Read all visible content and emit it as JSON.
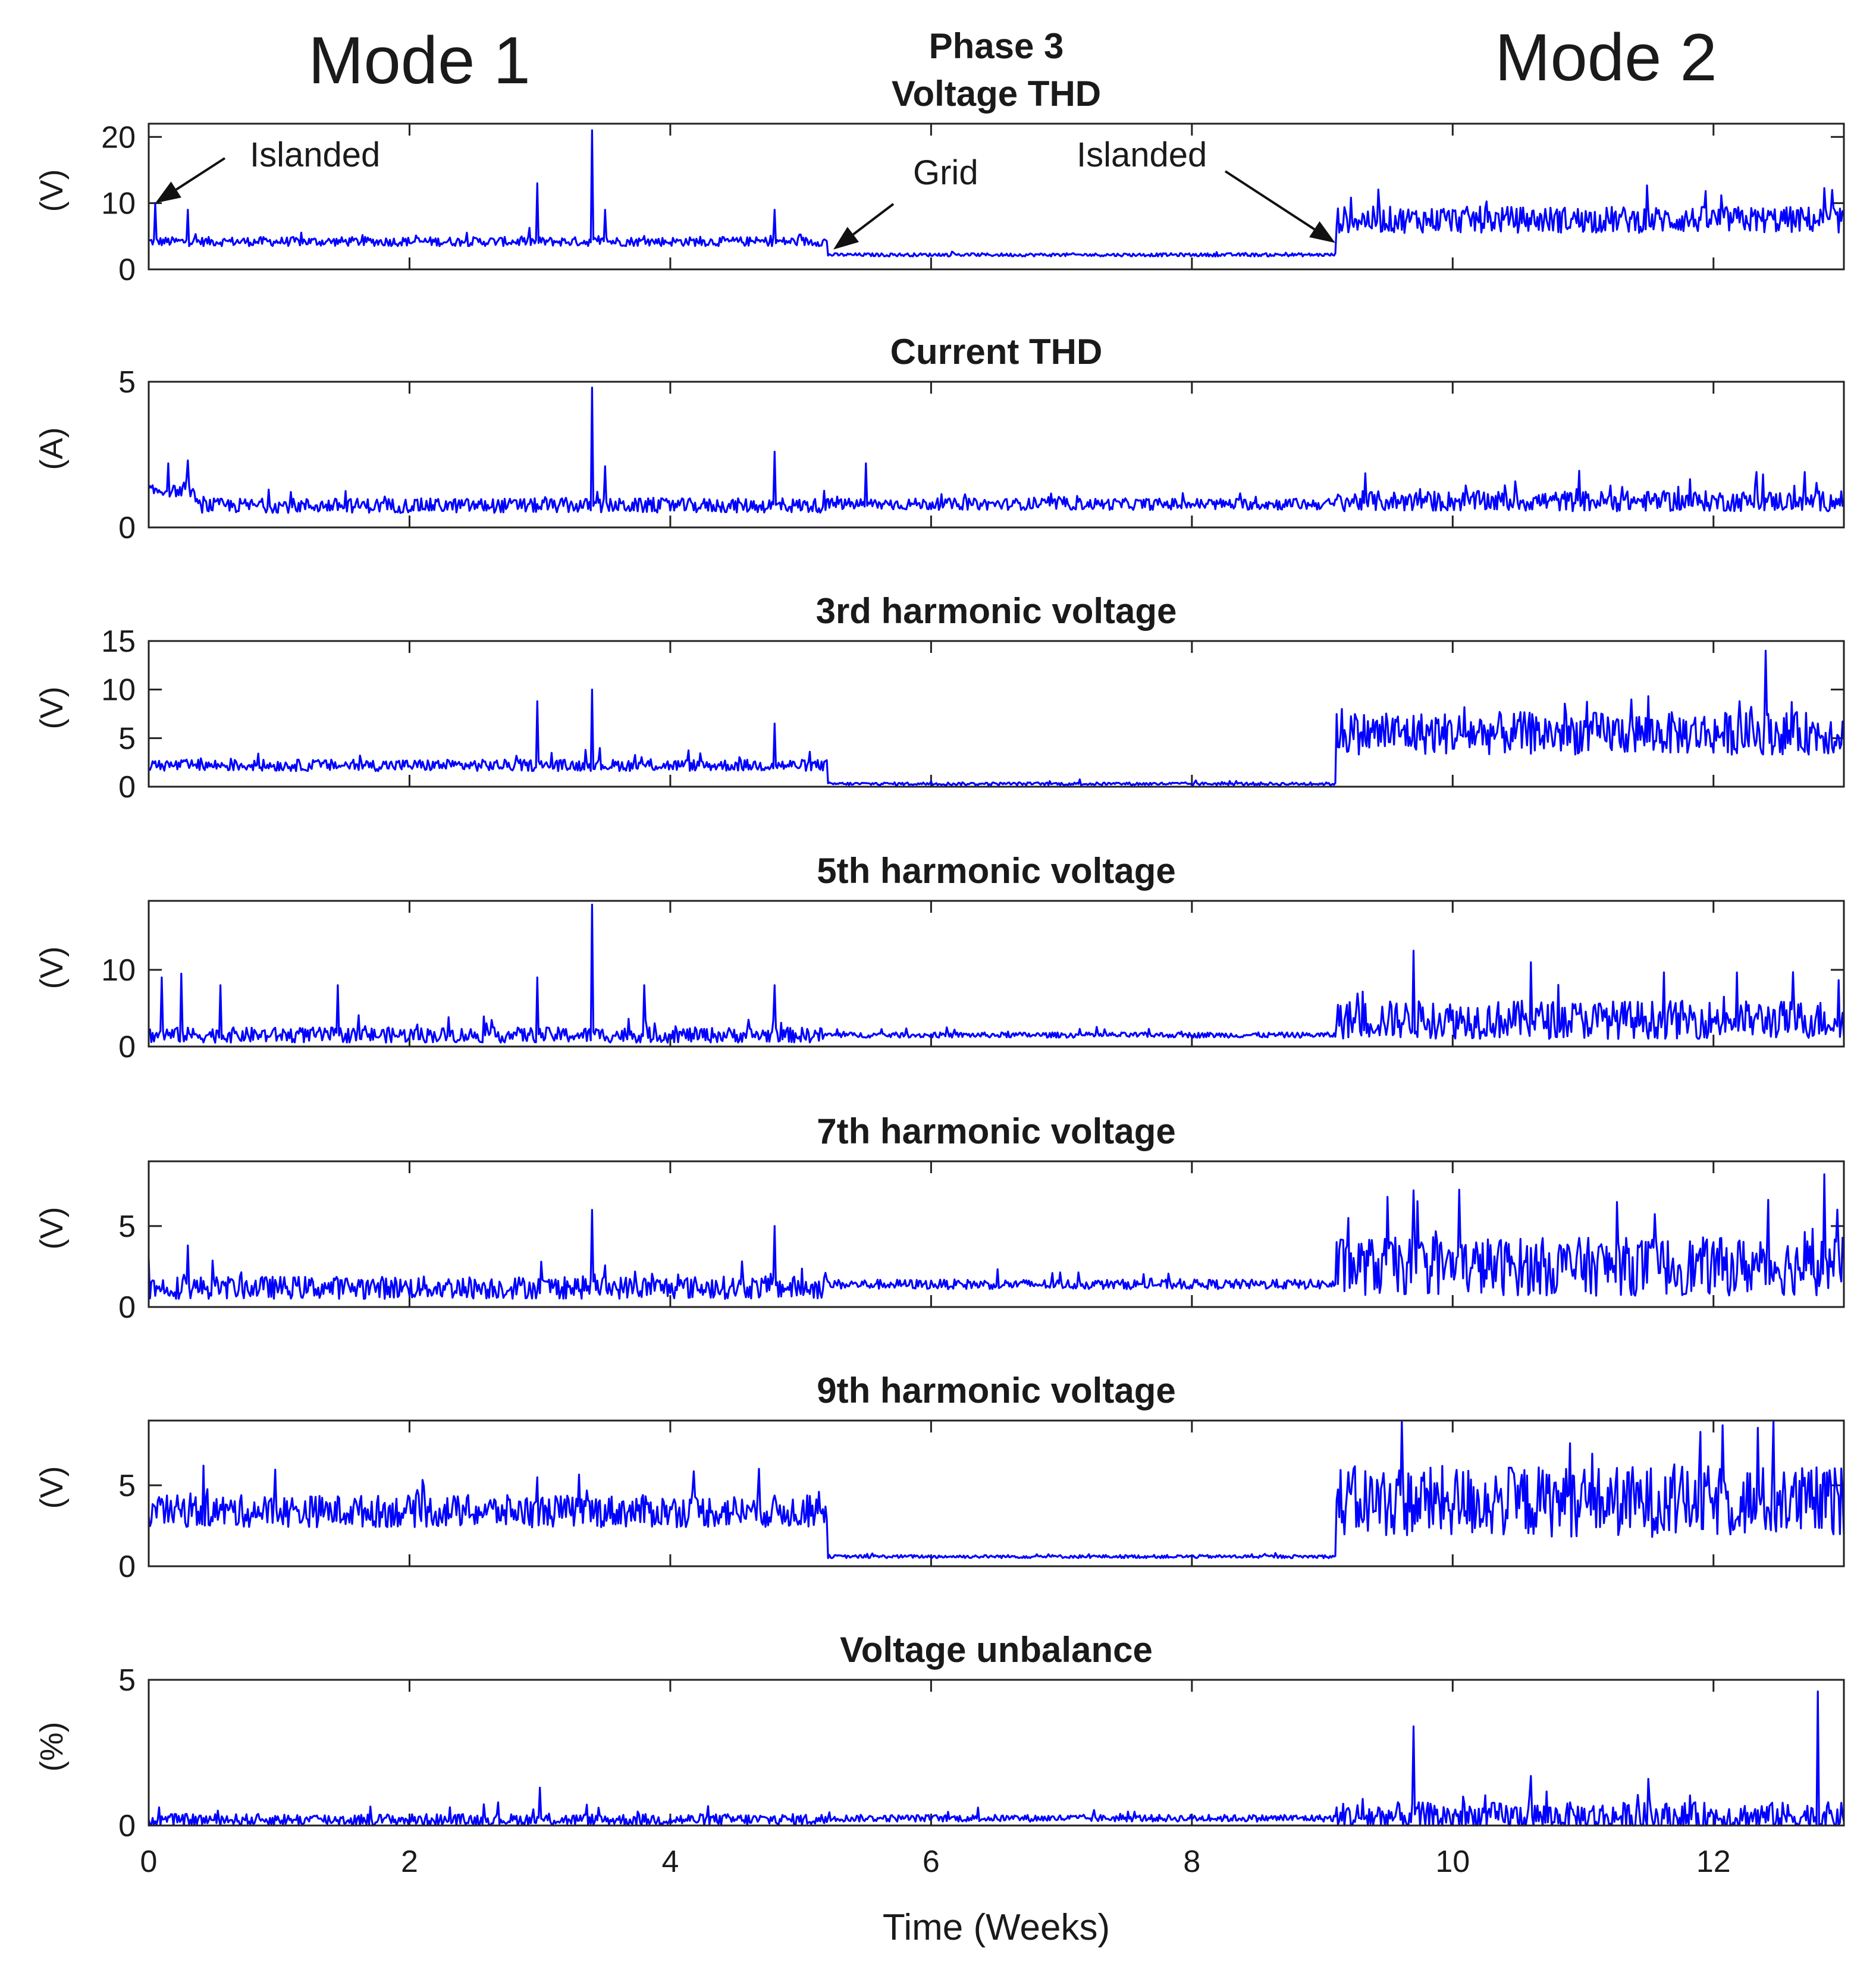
{
  "figure": {
    "mode_left": "Mode 1",
    "mode_right": "Mode 2",
    "xlabel": "Time (Weeks)",
    "line_color": "#0000ff",
    "annotations": [
      {
        "label": "Islanded",
        "panel": 0,
        "target_x": 0.05,
        "target_y": 10
      },
      {
        "label": "Grid",
        "panel": 0,
        "target_x": 5.25,
        "target_y": 3
      },
      {
        "label": "Islanded",
        "panel": 0,
        "target_x": 9.1,
        "target_y": 4
      }
    ]
  },
  "chart_data": [
    {
      "type": "line",
      "title": "Phase 3",
      "subtitle": "Voltage THD",
      "ylabel": "(V)",
      "xlim": [
        0,
        13
      ],
      "ylim": [
        0,
        22
      ],
      "yticks": [
        0,
        10,
        20
      ],
      "xticks": [
        0,
        2,
        4,
        6,
        8,
        10,
        12
      ],
      "series": [
        {
          "name": "Voltage THD",
          "segments": [
            {
              "x0": 0,
              "x1": 5.2,
              "base": 4.2,
              "noise": 0.7
            },
            {
              "x0": 5.2,
              "x1": 9.1,
              "base": 2.2,
              "noise": 0.25
            },
            {
              "x0": 9.1,
              "x1": 13,
              "base": 7.5,
              "noise": 2.0
            }
          ],
          "spikes": [
            [
              0.05,
              10
            ],
            [
              0.3,
              9
            ],
            [
              2.98,
              13
            ],
            [
              3.4,
              21
            ],
            [
              3.5,
              9
            ],
            [
              4.8,
              9
            ]
          ]
        }
      ]
    },
    {
      "type": "line",
      "title": "Current THD",
      "ylabel": "(A)",
      "xlim": [
        0,
        13
      ],
      "ylim": [
        0,
        5
      ],
      "yticks": [
        0,
        5
      ],
      "xticks": [
        0,
        2,
        4,
        6,
        8,
        10,
        12
      ],
      "series": [
        {
          "name": "Current THD",
          "segments": [
            {
              "x0": 0,
              "x1": 0.35,
              "base": 1.25,
              "noise": 0.2
            },
            {
              "x0": 0.35,
              "x1": 5.2,
              "base": 0.75,
              "noise": 0.25
            },
            {
              "x0": 5.2,
              "x1": 9.1,
              "base": 0.8,
              "noise": 0.2
            },
            {
              "x0": 9.1,
              "x1": 13,
              "base": 0.9,
              "noise": 0.35
            }
          ],
          "spikes": [
            [
              0.15,
              2.2
            ],
            [
              0.3,
              2.3
            ],
            [
              3.4,
              4.8
            ],
            [
              3.5,
              2.1
            ],
            [
              4.8,
              2.6
            ],
            [
              5.5,
              2.2
            ],
            [
              12.7,
              1.9
            ]
          ]
        }
      ]
    },
    {
      "type": "line",
      "title": "3rd harmonic voltage",
      "ylabel": "(V)",
      "xlim": [
        0,
        13
      ],
      "ylim": [
        0,
        15
      ],
      "yticks": [
        0,
        5,
        10,
        15
      ],
      "xticks": [
        0,
        2,
        4,
        6,
        8,
        10,
        12
      ],
      "series": [
        {
          "name": "3rd harmonic",
          "segments": [
            {
              "x0": 0,
              "x1": 5.2,
              "base": 2.2,
              "noise": 0.6
            },
            {
              "x0": 5.2,
              "x1": 9.1,
              "base": 0.3,
              "noise": 0.15
            },
            {
              "x0": 9.1,
              "x1": 13,
              "base": 5.5,
              "noise": 2.2
            }
          ],
          "spikes": [
            [
              2.98,
              8.8
            ],
            [
              3.4,
              10
            ],
            [
              4.8,
              6.5
            ],
            [
              12.4,
              14
            ],
            [
              9.15,
              8
            ]
          ]
        }
      ]
    },
    {
      "type": "line",
      "title": "5th harmonic voltage",
      "ylabel": "(V)",
      "xlim": [
        0,
        13
      ],
      "ylim": [
        0,
        19
      ],
      "yticks": [
        0,
        10
      ],
      "xticks": [
        0,
        2,
        4,
        6,
        8,
        10,
        12
      ],
      "series": [
        {
          "name": "5th harmonic",
          "segments": [
            {
              "x0": 0,
              "x1": 5.2,
              "base": 1.5,
              "noise": 1.0
            },
            {
              "x0": 5.2,
              "x1": 9.1,
              "base": 1.5,
              "noise": 0.35
            },
            {
              "x0": 9.1,
              "x1": 13,
              "base": 3.5,
              "noise": 2.5
            }
          ],
          "spikes": [
            [
              0.1,
              9
            ],
            [
              0.25,
              9.5
            ],
            [
              0.55,
              8
            ],
            [
              1.45,
              8
            ],
            [
              2.98,
              9
            ],
            [
              3.4,
              18.5
            ],
            [
              3.8,
              8
            ],
            [
              4.8,
              8
            ],
            [
              9.7,
              12.5
            ],
            [
              10.6,
              11
            ]
          ]
        }
      ]
    },
    {
      "type": "line",
      "title": "7th harmonic voltage",
      "ylabel": "(V)",
      "xlim": [
        0,
        13
      ],
      "ylim": [
        0,
        9
      ],
      "yticks": [
        0,
        5
      ],
      "xticks": [
        0,
        2,
        4,
        6,
        8,
        10,
        12
      ],
      "series": [
        {
          "name": "7th harmonic",
          "segments": [
            {
              "x0": 0,
              "x1": 5.2,
              "base": 1.2,
              "noise": 0.7
            },
            {
              "x0": 5.2,
              "x1": 9.1,
              "base": 1.4,
              "noise": 0.3
            },
            {
              "x0": 9.1,
              "x1": 13,
              "base": 2.5,
              "noise": 1.8
            }
          ],
          "spikes": [
            [
              0.0,
              3
            ],
            [
              0.3,
              3.8
            ],
            [
              3.4,
              6
            ],
            [
              4.8,
              5
            ],
            [
              9.2,
              5.5
            ],
            [
              9.5,
              6.8
            ],
            [
              12.85,
              8.2
            ]
          ]
        }
      ]
    },
    {
      "type": "line",
      "title": "9th harmonic voltage",
      "ylabel": "(V)",
      "xlim": [
        0,
        13
      ],
      "ylim": [
        0,
        9
      ],
      "yticks": [
        0,
        5
      ],
      "xticks": [
        0,
        2,
        4,
        6,
        8,
        10,
        12
      ],
      "series": [
        {
          "name": "9th harmonic",
          "segments": [
            {
              "x0": 0,
              "x1": 5.2,
              "base": 3.4,
              "noise": 1.0
            },
            {
              "x0": 5.2,
              "x1": 9.1,
              "base": 0.6,
              "noise": 0.1
            },
            {
              "x0": 9.1,
              "x1": 13,
              "base": 4.0,
              "noise": 2.2
            }
          ],
          "spikes": [
            [
              11.9,
              8.3
            ],
            [
              10.9,
              7.6
            ]
          ]
        }
      ]
    },
    {
      "type": "line",
      "title": "Voltage unbalance",
      "ylabel": "(%)",
      "xlim": [
        0,
        13
      ],
      "ylim": [
        0,
        5
      ],
      "yticks": [
        0,
        5
      ],
      "xticks": [
        0,
        2,
        4,
        6,
        8,
        10,
        12
      ],
      "series": [
        {
          "name": "Voltage unbalance",
          "segments": [
            {
              "x0": 0,
              "x1": 5.2,
              "base": 0.2,
              "noise": 0.2
            },
            {
              "x0": 5.2,
              "x1": 9.1,
              "base": 0.25,
              "noise": 0.12
            },
            {
              "x0": 9.1,
              "x1": 13,
              "base": 0.3,
              "noise": 0.5
            }
          ],
          "spikes": [
            [
              3.0,
              1.3
            ],
            [
              9.7,
              3.4
            ],
            [
              12.8,
              4.6
            ],
            [
              10.6,
              1.7
            ],
            [
              11.5,
              1.6
            ]
          ]
        }
      ]
    }
  ]
}
